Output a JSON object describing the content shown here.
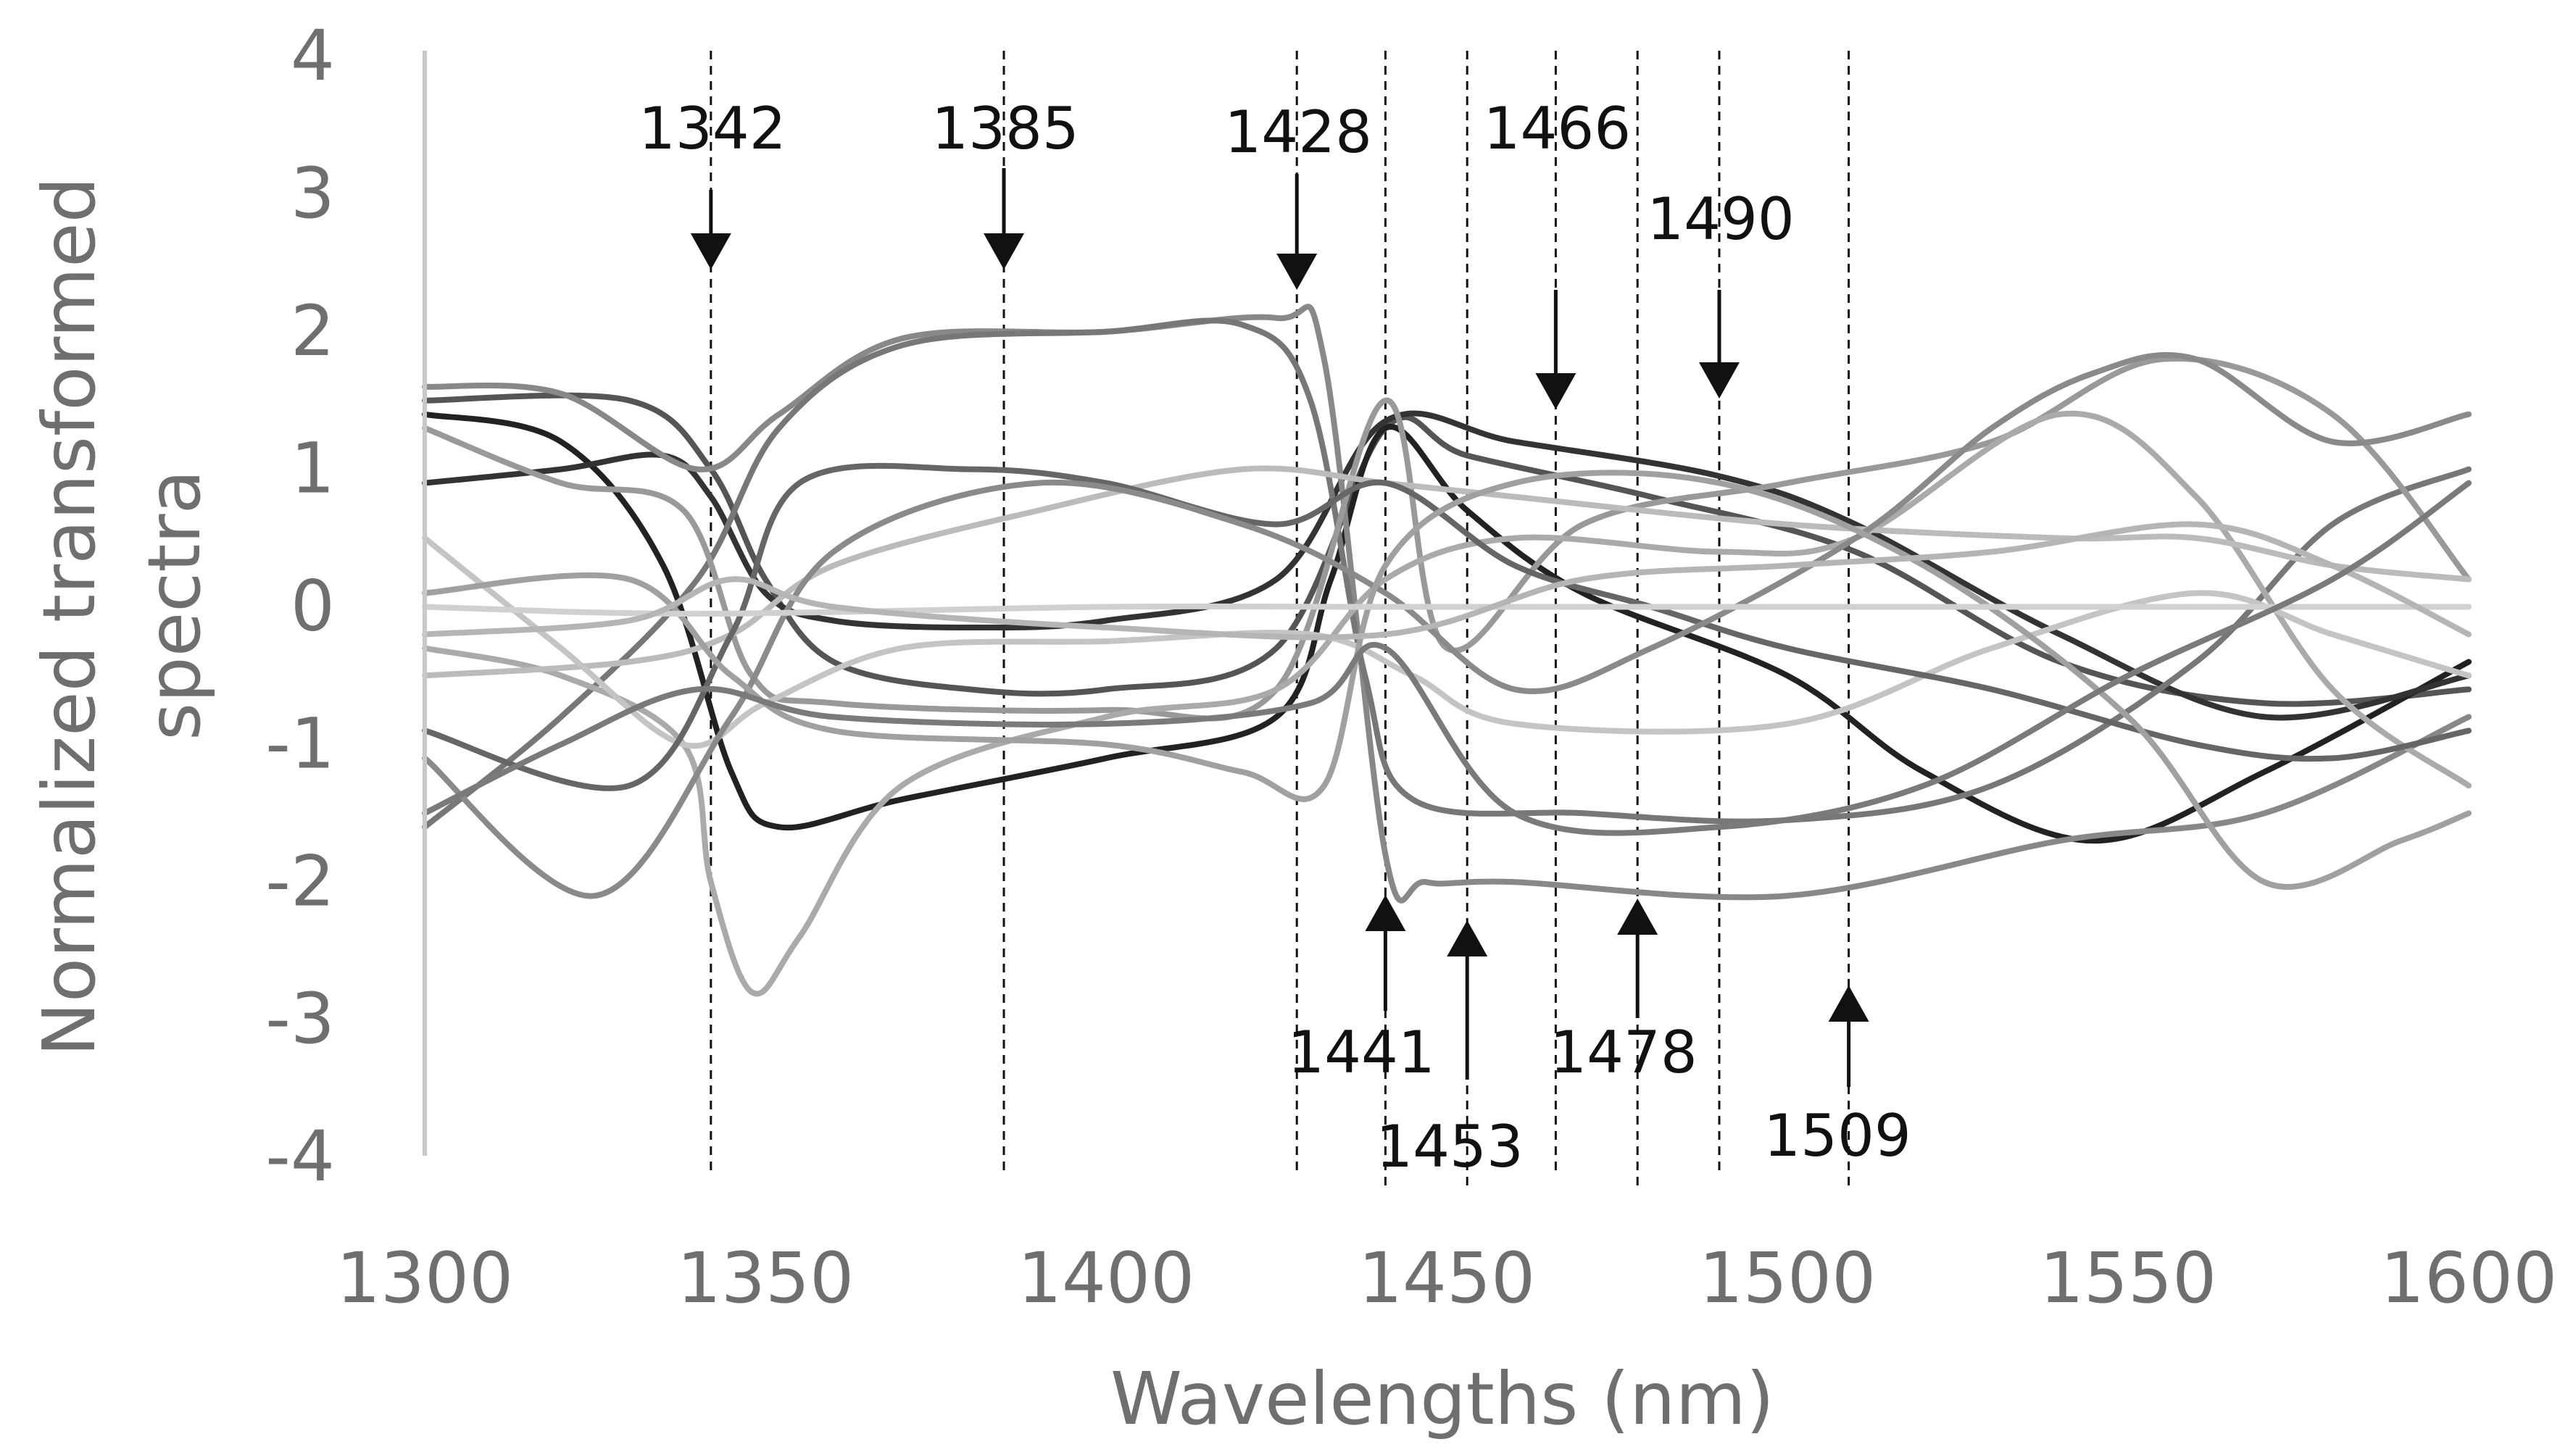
{
  "chart_data": {
    "type": "line",
    "title": "",
    "xlabel": "Wavelengths (nm)",
    "ylabel_line1": "Normalized transformed",
    "ylabel_line2": "spectra",
    "xlim": [
      1300,
      1600
    ],
    "ylim": [
      -4,
      4
    ],
    "x_ticks": [
      "1300",
      "1350",
      "1400",
      "1450",
      "1500",
      "1550",
      "1600"
    ],
    "y_ticks": [
      "4",
      "3",
      "2",
      "1",
      "0",
      "-1",
      "-2",
      "-3",
      "-4"
    ],
    "grid": false,
    "legend": "none",
    "series": [
      {
        "color": "#555555",
        "points": [
          [
            1300,
            1.5
          ],
          [
            1330,
            1.5
          ],
          [
            1342,
            1.0
          ],
          [
            1350,
            0.2
          ],
          [
            1360,
            -0.4
          ],
          [
            1380,
            -0.6
          ],
          [
            1400,
            -0.6
          ],
          [
            1425,
            -0.3
          ],
          [
            1441,
            1.3
          ],
          [
            1453,
            1.1
          ],
          [
            1480,
            0.8
          ],
          [
            1510,
            0.4
          ],
          [
            1540,
            -0.4
          ],
          [
            1570,
            -0.7
          ],
          [
            1600,
            -0.6
          ]
        ]
      },
      {
        "color": "#222222",
        "points": [
          [
            1300,
            1.4
          ],
          [
            1320,
            1.2
          ],
          [
            1335,
            0.3
          ],
          [
            1345,
            -1.2
          ],
          [
            1352,
            -1.6
          ],
          [
            1370,
            -1.4
          ],
          [
            1400,
            -1.1
          ],
          [
            1425,
            -0.8
          ],
          [
            1433,
            0.2
          ],
          [
            1441,
            1.3
          ],
          [
            1453,
            0.7
          ],
          [
            1470,
            0.1
          ],
          [
            1500,
            -0.5
          ],
          [
            1520,
            -1.2
          ],
          [
            1545,
            -1.7
          ],
          [
            1570,
            -1.2
          ],
          [
            1600,
            -0.4
          ]
        ]
      },
      {
        "color": "#333333",
        "points": [
          [
            1300,
            0.9
          ],
          [
            1320,
            1.0
          ],
          [
            1335,
            1.1
          ],
          [
            1342,
            0.8
          ],
          [
            1350,
            0.1
          ],
          [
            1360,
            -0.1
          ],
          [
            1380,
            -0.15
          ],
          [
            1400,
            -0.1
          ],
          [
            1425,
            0.2
          ],
          [
            1441,
            1.35
          ],
          [
            1460,
            1.2
          ],
          [
            1490,
            0.95
          ],
          [
            1510,
            0.6
          ],
          [
            1540,
            -0.2
          ],
          [
            1570,
            -0.8
          ],
          [
            1600,
            -0.5
          ]
        ]
      },
      {
        "color": "#888888",
        "points": [
          [
            1300,
            1.6
          ],
          [
            1320,
            1.55
          ],
          [
            1340,
            1.0
          ],
          [
            1352,
            1.4
          ],
          [
            1370,
            1.95
          ],
          [
            1400,
            2.0
          ],
          [
            1425,
            2.1
          ],
          [
            1432,
            1.8
          ],
          [
            1441,
            -1.8
          ],
          [
            1447,
            -2.0
          ],
          [
            1460,
            -2.0
          ],
          [
            1500,
            -2.1
          ],
          [
            1540,
            -1.7
          ],
          [
            1570,
            -1.5
          ],
          [
            1600,
            -0.8
          ]
        ]
      },
      {
        "color": "#777777",
        "points": [
          [
            1300,
            -1.6
          ],
          [
            1320,
            -0.8
          ],
          [
            1340,
            0.2
          ],
          [
            1352,
            1.3
          ],
          [
            1370,
            1.9
          ],
          [
            1400,
            2.0
          ],
          [
            1420,
            2.05
          ],
          [
            1430,
            1.5
          ],
          [
            1438,
            -0.5
          ],
          [
            1445,
            -1.4
          ],
          [
            1470,
            -1.5
          ],
          [
            1500,
            -1.55
          ],
          [
            1530,
            -1.3
          ],
          [
            1560,
            -0.4
          ],
          [
            1580,
            0.6
          ],
          [
            1600,
            1.0
          ]
        ]
      },
      {
        "color": "#999999",
        "points": [
          [
            1300,
            1.3
          ],
          [
            1320,
            0.9
          ],
          [
            1338,
            0.7
          ],
          [
            1348,
            -0.5
          ],
          [
            1360,
            -0.7
          ],
          [
            1400,
            -0.75
          ],
          [
            1425,
            -0.6
          ],
          [
            1441,
            1.5
          ],
          [
            1450,
            -0.3
          ],
          [
            1470,
            0.6
          ],
          [
            1500,
            0.9
          ],
          [
            1530,
            1.2
          ],
          [
            1555,
            1.8
          ],
          [
            1580,
            1.4
          ],
          [
            1600,
            0.2
          ]
        ]
      },
      {
        "color": "#aaaaaa",
        "points": [
          [
            1300,
            -0.3
          ],
          [
            1320,
            -0.5
          ],
          [
            1338,
            -1.0
          ],
          [
            1342,
            -2.0
          ],
          [
            1348,
            -2.8
          ],
          [
            1355,
            -2.4
          ],
          [
            1370,
            -1.3
          ],
          [
            1400,
            -0.8
          ],
          [
            1425,
            -0.6
          ],
          [
            1441,
            0.2
          ],
          [
            1460,
            0.5
          ],
          [
            1490,
            0.4
          ],
          [
            1510,
            0.5
          ],
          [
            1540,
            1.4
          ],
          [
            1560,
            0.8
          ],
          [
            1580,
            -0.6
          ],
          [
            1600,
            -1.3
          ]
        ]
      },
      {
        "color": "#bbbbbb",
        "points": [
          [
            1300,
            -0.5
          ],
          [
            1330,
            -0.4
          ],
          [
            1345,
            -0.2
          ],
          [
            1360,
            0.3
          ],
          [
            1390,
            0.7
          ],
          [
            1420,
            1.0
          ],
          [
            1441,
            0.9
          ],
          [
            1460,
            0.8
          ],
          [
            1500,
            0.6
          ],
          [
            1540,
            0.5
          ],
          [
            1560,
            0.5
          ],
          [
            1580,
            0.3
          ],
          [
            1600,
            0.2
          ]
        ]
      },
      {
        "color": "#c4c4c4",
        "points": [
          [
            1300,
            0.5
          ],
          [
            1320,
            -0.3
          ],
          [
            1338,
            -1.0
          ],
          [
            1350,
            -0.7
          ],
          [
            1370,
            -0.3
          ],
          [
            1400,
            -0.25
          ],
          [
            1430,
            -0.2
          ],
          [
            1445,
            -0.5
          ],
          [
            1460,
            -0.85
          ],
          [
            1500,
            -0.85
          ],
          [
            1530,
            -0.3
          ],
          [
            1560,
            0.1
          ],
          [
            1580,
            -0.2
          ],
          [
            1600,
            -0.5
          ]
        ]
      },
      {
        "color": "#666666",
        "points": [
          [
            1300,
            -0.9
          ],
          [
            1330,
            -1.3
          ],
          [
            1345,
            -0.2
          ],
          [
            1355,
            0.9
          ],
          [
            1380,
            1.0
          ],
          [
            1400,
            0.9
          ],
          [
            1425,
            0.6
          ],
          [
            1441,
            0.9
          ],
          [
            1460,
            0.3
          ],
          [
            1480,
            0.0
          ],
          [
            1500,
            -0.3
          ],
          [
            1530,
            -0.6
          ],
          [
            1560,
            -1.0
          ],
          [
            1580,
            -1.1
          ],
          [
            1600,
            -0.9
          ]
        ]
      },
      {
        "color": "#8a8a8a",
        "points": [
          [
            1300,
            -1.1
          ],
          [
            1325,
            -2.1
          ],
          [
            1345,
            -0.8
          ],
          [
            1360,
            0.4
          ],
          [
            1390,
            0.9
          ],
          [
            1420,
            0.6
          ],
          [
            1441,
            0.1
          ],
          [
            1460,
            -0.6
          ],
          [
            1480,
            -0.3
          ],
          [
            1510,
            0.5
          ],
          [
            1530,
            1.3
          ],
          [
            1545,
            1.7
          ],
          [
            1560,
            1.8
          ],
          [
            1580,
            1.2
          ],
          [
            1600,
            1.4
          ]
        ]
      },
      {
        "color": "#a0a0a0",
        "points": [
          [
            1300,
            0.1
          ],
          [
            1330,
            0.2
          ],
          [
            1345,
            -0.5
          ],
          [
            1360,
            -0.9
          ],
          [
            1400,
            -1.0
          ],
          [
            1420,
            -1.2
          ],
          [
            1432,
            -1.3
          ],
          [
            1441,
            0.3
          ],
          [
            1460,
            0.9
          ],
          [
            1490,
            0.9
          ],
          [
            1520,
            0.3
          ],
          [
            1550,
            -0.8
          ],
          [
            1570,
            -2.0
          ],
          [
            1590,
            -1.7
          ],
          [
            1600,
            -1.5
          ]
        ]
      },
      {
        "color": "#d0d0d0",
        "points": [
          [
            1300,
            0.0
          ],
          [
            1340,
            -0.05
          ],
          [
            1400,
            0.0
          ],
          [
            1441,
            0.0
          ],
          [
            1500,
            0.0
          ],
          [
            1550,
            0.0
          ],
          [
            1600,
            0.0
          ]
        ]
      },
      {
        "color": "#b5b5b5",
        "points": [
          [
            1300,
            -0.2
          ],
          [
            1330,
            -0.1
          ],
          [
            1345,
            0.2
          ],
          [
            1360,
            0.0
          ],
          [
            1400,
            -0.15
          ],
          [
            1441,
            -0.2
          ],
          [
            1470,
            0.2
          ],
          [
            1500,
            0.3
          ],
          [
            1530,
            0.4
          ],
          [
            1560,
            0.6
          ],
          [
            1580,
            0.3
          ],
          [
            1600,
            -0.2
          ]
        ]
      },
      {
        "color": "#7a7a7a",
        "points": [
          [
            1300,
            -1.5
          ],
          [
            1320,
            -1.0
          ],
          [
            1340,
            -0.6
          ],
          [
            1360,
            -0.8
          ],
          [
            1400,
            -0.85
          ],
          [
            1430,
            -0.7
          ],
          [
            1441,
            -0.3
          ],
          [
            1460,
            -1.5
          ],
          [
            1490,
            -1.6
          ],
          [
            1520,
            -1.3
          ],
          [
            1550,
            -0.5
          ],
          [
            1580,
            0.2
          ],
          [
            1600,
            0.9
          ]
        ]
      }
    ],
    "down_markers": [
      {
        "label": "1342",
        "x": 1342
      },
      {
        "label": "1385",
        "x": 1385
      },
      {
        "label": "1428",
        "x": 1428
      },
      {
        "label": "1466",
        "x": 1466
      },
      {
        "label": "1490",
        "x": 1490
      }
    ],
    "up_markers": [
      {
        "label": "1441",
        "x": 1441
      },
      {
        "label": "1453",
        "x": 1453
      },
      {
        "label": "1478",
        "x": 1478
      },
      {
        "label": "1509",
        "x": 1509
      }
    ]
  }
}
